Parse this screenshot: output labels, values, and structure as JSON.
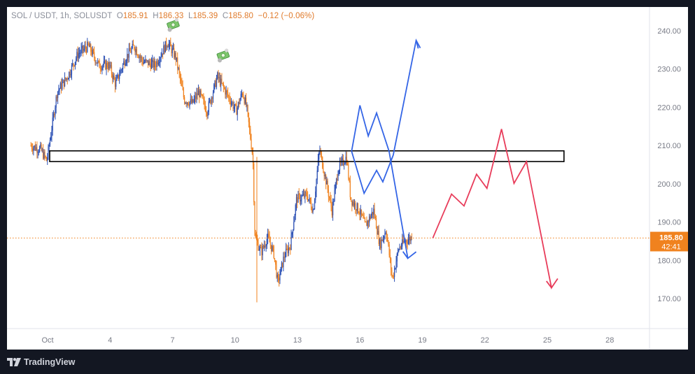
{
  "legend": {
    "symbol": "SOL / USDT, 1h, SOLUSDT",
    "o_label": "O",
    "o_val": "185.91",
    "h_label": "H",
    "h_val": "186.33",
    "l_label": "L",
    "l_val": "185.39",
    "c_label": "C",
    "c_val": "185.80",
    "change": "−0.12 (−0.06%)"
  },
  "price_tag": {
    "price": "185.80",
    "countdown": "42:41"
  },
  "footer": {
    "brand": "TradingView"
  },
  "colors": {
    "up": "#2a4fb4",
    "down": "#f0821e",
    "blue_arrow": "#3465e6",
    "red_arrow": "#e83c5a",
    "price_line": "#f0821e",
    "tag_bg": "#f0821e"
  },
  "icons": [
    "money-bag-icon",
    "money-bag-icon"
  ],
  "chart_data": {
    "type": "candlestick",
    "ylim": [
      160,
      245
    ],
    "y_ticks": [
      "240.00",
      "230.00",
      "220.00",
      "210.00",
      "200.00",
      "190.00",
      "180.00",
      "170.00"
    ],
    "y_tick_values": [
      240,
      230,
      220,
      210,
      200,
      190,
      180,
      170
    ],
    "x_ticks": [
      "Oct",
      "4",
      "7",
      "10",
      "13",
      "16",
      "19",
      "22",
      "25",
      "28"
    ],
    "x_tick_days": [
      1,
      4,
      7,
      10,
      13,
      16,
      19,
      22,
      25,
      28
    ],
    "xlim_days": [
      0.2,
      30.9
    ],
    "last_price": 185.8,
    "price_path_approx": [
      [
        0.2,
        210
      ],
      [
        0.7,
        209
      ],
      [
        1.0,
        206
      ],
      [
        1.2,
        213
      ],
      [
        1.5,
        224
      ],
      [
        2.0,
        228
      ],
      [
        2.5,
        234
      ],
      [
        3.0,
        236
      ],
      [
        3.5,
        231
      ],
      [
        4.0,
        231
      ],
      [
        4.3,
        226
      ],
      [
        4.8,
        233
      ],
      [
        5.2,
        236
      ],
      [
        5.6,
        232
      ],
      [
        6.2,
        231
      ],
      [
        6.8,
        237
      ],
      [
        7.2,
        233
      ],
      [
        7.6,
        222
      ],
      [
        8.0,
        221
      ],
      [
        8.3,
        224
      ],
      [
        8.7,
        219
      ],
      [
        9.2,
        228
      ],
      [
        9.6,
        224
      ],
      [
        10.1,
        219
      ],
      [
        10.4,
        224
      ],
      [
        10.6,
        220
      ],
      [
        10.9,
        207
      ],
      [
        11.0,
        186
      ],
      [
        11.3,
        182
      ],
      [
        11.6,
        186
      ],
      [
        11.9,
        182
      ],
      [
        12.1,
        174
      ],
      [
        12.4,
        181
      ],
      [
        12.7,
        184
      ],
      [
        13.0,
        196
      ],
      [
        13.5,
        197
      ],
      [
        13.8,
        193
      ],
      [
        14.1,
        209
      ],
      [
        14.4,
        201
      ],
      [
        14.7,
        193
      ],
      [
        15.0,
        204
      ],
      [
        15.4,
        207
      ],
      [
        15.6,
        196
      ],
      [
        16.0,
        193
      ],
      [
        16.3,
        189
      ],
      [
        16.7,
        193
      ],
      [
        17.0,
        184
      ],
      [
        17.3,
        188
      ],
      [
        17.6,
        175
      ],
      [
        17.9,
        183
      ],
      [
        18.2,
        185
      ],
      [
        18.5,
        185.8
      ]
    ],
    "series": [
      {
        "name": "",
        "color": "#3465e6",
        "points": [
          [
            15.6,
            208.5
          ],
          [
            16.0,
            220.5
          ],
          [
            16.4,
            212.5
          ],
          [
            16.8,
            218.5
          ],
          [
            17.4,
            208.5
          ],
          [
            18.3,
            180.5
          ],
          [
            18.7,
            182.2
          ]
        ]
      },
      {
        "name": "",
        "color": "#3465e6",
        "points": [
          [
            15.6,
            208.5
          ],
          [
            16.2,
            197.5
          ],
          [
            16.8,
            203.5
          ],
          [
            17.1,
            200.5
          ],
          [
            17.6,
            207.5
          ],
          [
            18.7,
            237.5
          ],
          [
            18.9,
            235.5
          ]
        ]
      },
      {
        "name": "",
        "color": "#e83c5a",
        "points": [
          [
            19.5,
            185.8
          ],
          [
            20.4,
            197.3
          ],
          [
            21.0,
            194.2
          ],
          [
            21.6,
            202.5
          ],
          [
            22.1,
            198.8
          ],
          [
            22.8,
            214.3
          ],
          [
            23.4,
            200.1
          ],
          [
            24.0,
            205.8
          ],
          [
            25.2,
            172.8
          ],
          [
            25.5,
            175.2
          ]
        ]
      }
    ],
    "annotations": [
      {
        "type": "rectangle",
        "x_days": [
          1.1,
          25.8
        ],
        "y_values": [
          205.8,
          208.6
        ]
      },
      {
        "type": "icon",
        "icon": "money-bag-icon",
        "day": 7.0,
        "price": 241.5
      },
      {
        "type": "icon",
        "icon": "money-bag-icon",
        "day": 9.4,
        "price": 233.5
      }
    ]
  }
}
